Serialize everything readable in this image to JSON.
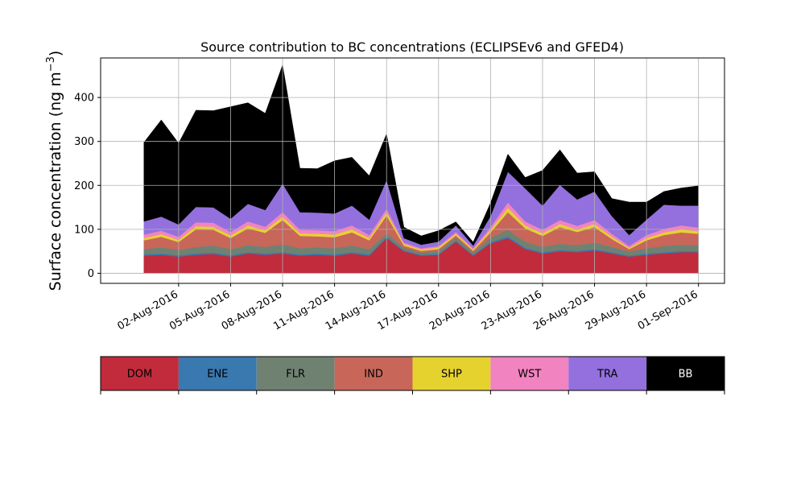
{
  "chart_data": {
    "type": "area",
    "title": "Source contribution to BC concentrations (ECLIPSEv6 and GFED4)",
    "ylabel": "Surface concentration (ng m",
    "ylabel_sup": "−3",
    "ylabel_close": ")",
    "xlabel": "",
    "ylim": [
      -23,
      490
    ],
    "xlim": [
      "2016-07-28T12:00",
      "2016-09-02T12:00"
    ],
    "yticks": [
      0,
      100,
      200,
      300,
      400
    ],
    "xticks": [
      "02-Aug-2016",
      "05-Aug-2016",
      "08-Aug-2016",
      "11-Aug-2016",
      "14-Aug-2016",
      "17-Aug-2016",
      "20-Aug-2016",
      "23-Aug-2016",
      "26-Aug-2016",
      "29-Aug-2016",
      "01-Sep-2016"
    ],
    "xtick_dates": [
      "2016-08-02",
      "2016-08-05",
      "2016-08-08",
      "2016-08-11",
      "2016-08-14",
      "2016-08-17",
      "2016-08-20",
      "2016-08-23",
      "2016-08-26",
      "2016-08-29",
      "2016-09-01"
    ],
    "grid": true,
    "stacked": true,
    "dates": [
      "2016-07-31",
      "2016-08-01",
      "2016-08-02",
      "2016-08-03",
      "2016-08-04",
      "2016-08-05",
      "2016-08-06",
      "2016-08-07",
      "2016-08-08",
      "2016-08-09",
      "2016-08-10",
      "2016-08-11",
      "2016-08-12",
      "2016-08-13",
      "2016-08-14",
      "2016-08-15",
      "2016-08-16",
      "2016-08-17",
      "2016-08-18",
      "2016-08-19",
      "2016-08-20",
      "2016-08-21",
      "2016-08-22",
      "2016-08-23",
      "2016-08-24",
      "2016-08-25",
      "2016-08-26",
      "2016-08-27",
      "2016-08-28",
      "2016-08-29",
      "2016-08-30",
      "2016-08-31",
      "2016-09-01"
    ],
    "series": [
      {
        "name": "DOM",
        "color": "#c22b3b",
        "values": [
          40,
          42,
          38,
          42,
          44,
          38,
          45,
          42,
          45,
          40,
          42,
          40,
          45,
          40,
          80,
          50,
          40,
          42,
          72,
          40,
          68,
          80,
          55,
          45,
          50,
          48,
          52,
          45,
          38,
          42,
          45,
          48,
          48
        ]
      },
      {
        "name": "ENE",
        "color": "#3a78b0",
        "values": [
          3,
          3,
          3,
          3,
          3,
          3,
          3,
          3,
          3,
          3,
          3,
          3,
          3,
          3,
          3,
          2,
          2,
          2,
          2,
          2,
          3,
          4,
          3,
          3,
          3,
          3,
          3,
          3,
          2,
          3,
          3,
          3,
          3
        ]
      },
      {
        "name": "FLR",
        "color": "#6f8272",
        "values": [
          12,
          14,
          12,
          15,
          16,
          14,
          16,
          15,
          18,
          14,
          14,
          14,
          15,
          12,
          8,
          6,
          5,
          6,
          8,
          5,
          10,
          15,
          14,
          12,
          14,
          13,
          15,
          12,
          10,
          12,
          14,
          14,
          13
        ]
      },
      {
        "name": "IND",
        "color": "#c8665a",
        "values": [
          20,
          24,
          18,
          40,
          36,
          25,
          38,
          32,
          55,
          28,
          25,
          25,
          30,
          20,
          40,
          5,
          4,
          5,
          4,
          4,
          12,
          40,
          30,
          25,
          38,
          30,
          35,
          18,
          5,
          18,
          25,
          28,
          26
        ]
      },
      {
        "name": "SHP",
        "color": "#e6d22f",
        "values": [
          5,
          6,
          5,
          7,
          7,
          6,
          7,
          6,
          8,
          6,
          6,
          6,
          7,
          5,
          8,
          4,
          3,
          4,
          4,
          3,
          6,
          10,
          7,
          6,
          7,
          6,
          7,
          5,
          3,
          5,
          6,
          7,
          6
        ]
      },
      {
        "name": "WST",
        "color": "#f283c1",
        "values": [
          8,
          8,
          7,
          9,
          9,
          8,
          9,
          8,
          10,
          8,
          8,
          8,
          9,
          7,
          8,
          3,
          3,
          3,
          4,
          3,
          6,
          12,
          9,
          8,
          9,
          8,
          9,
          7,
          4,
          7,
          8,
          9,
          8
        ]
      },
      {
        "name": "TRA",
        "color": "#9370dd",
        "values": [
          30,
          32,
          28,
          35,
          35,
          30,
          40,
          38,
          65,
          40,
          40,
          40,
          45,
          35,
          65,
          10,
          8,
          10,
          15,
          6,
          25,
          70,
          75,
          55,
          80,
          60,
          65,
          40,
          25,
          35,
          55,
          45,
          50
        ]
      },
      {
        "name": "BB",
        "color": "#000000",
        "values": [
          180,
          220,
          185,
          220,
          220,
          255,
          230,
          220,
          270,
          100,
          100,
          120,
          110,
          100,
          105,
          25,
          20,
          25,
          8,
          8,
          30,
          40,
          25,
          80,
          80,
          60,
          45,
          40,
          75,
          40,
          30,
          40,
          45
        ]
      }
    ],
    "legend_position": "bottom",
    "legend": [
      "DOM",
      "ENE",
      "FLR",
      "IND",
      "SHP",
      "WST",
      "TRA",
      "BB"
    ],
    "legend_text_colors": [
      "#000000",
      "#000000",
      "#000000",
      "#000000",
      "#000000",
      "#000000",
      "#000000",
      "#ffffff"
    ]
  }
}
